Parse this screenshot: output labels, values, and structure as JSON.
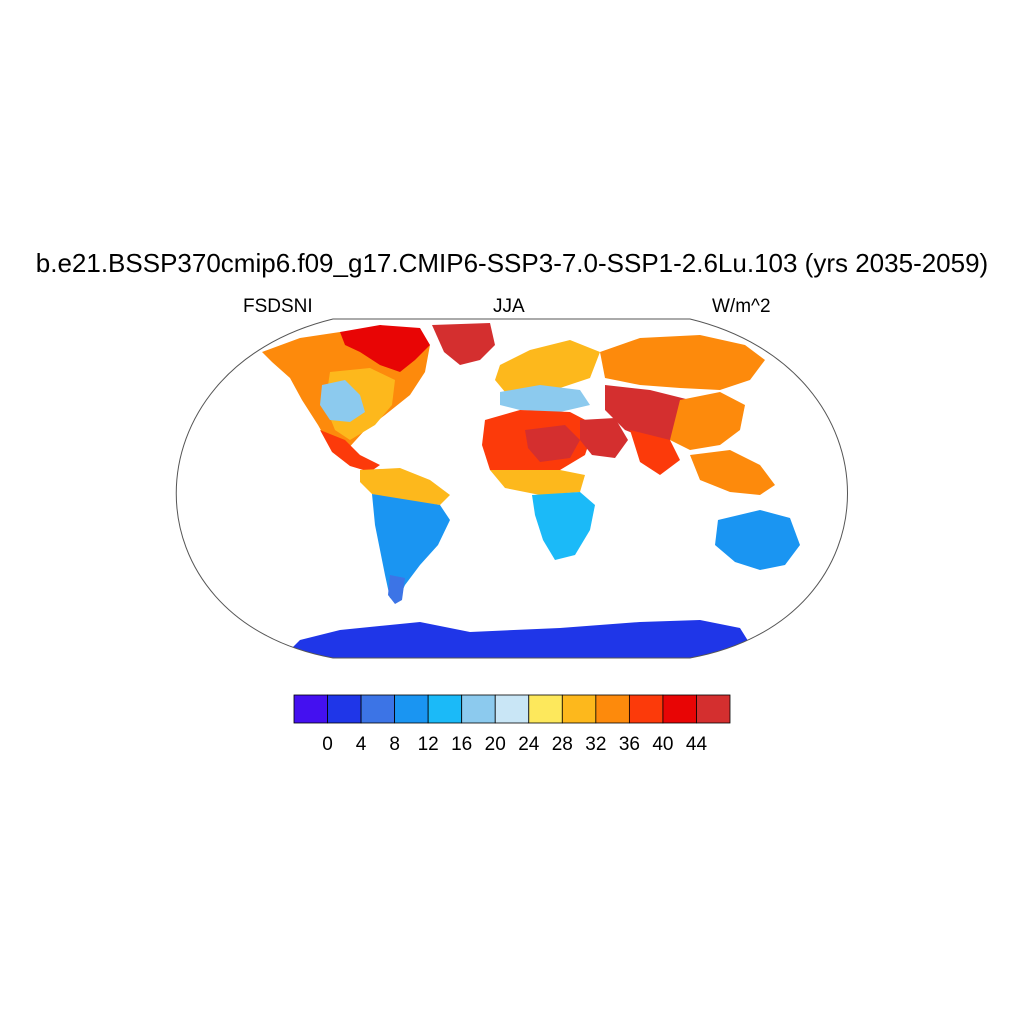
{
  "title": "b.e21.BSSP370cmip6.f09_g17.CMIP6-SSP3-7.0-SSP1-2.6Lu.103 (yrs 2035-2059)",
  "left_label": "FSDSNI",
  "center_label": "JJA",
  "right_label": "W/m^2",
  "colorbar": {
    "colors": [
      "#4410f0",
      "#1f36e8",
      "#3c74e6",
      "#1a95f2",
      "#1bbaf8",
      "#8ccaee",
      "#c9e6f6",
      "#fde85c",
      "#fdb81c",
      "#fd8a0c",
      "#fc3a0a",
      "#e80505",
      "#d42f2f"
    ],
    "tick_labels": [
      "0",
      "4",
      "8",
      "12",
      "16",
      "20",
      "24",
      "28",
      "32",
      "36",
      "40",
      "44"
    ]
  },
  "chart_data": {
    "type": "heatmap",
    "projection": "robinson",
    "variable": "FSDSNI",
    "season": "JJA",
    "units": "W/m^2",
    "levels": [
      0,
      4,
      8,
      12,
      16,
      20,
      24,
      28,
      32,
      36,
      40,
      44
    ],
    "regions": [
      {
        "name": "Greenland",
        "level_bin": ">44"
      },
      {
        "name": "Canadian Arctic",
        "level_bin": "40-44"
      },
      {
        "name": "Alaska / NW Canada",
        "level_bin": "32-36"
      },
      {
        "name": "Central North America",
        "level_bin": "24-32"
      },
      {
        "name": "US Midwest / South",
        "level_bin": "16-24"
      },
      {
        "name": "Mexico / Central America",
        "level_bin": "32-40"
      },
      {
        "name": "Northern South America",
        "level_bin": "28-36"
      },
      {
        "name": "Central South America",
        "level_bin": "12-16"
      },
      {
        "name": "Southern South America",
        "level_bin": "12-20"
      },
      {
        "name": "Europe",
        "level_bin": "24-36"
      },
      {
        "name": "Mediterranean coast",
        "level_bin": "16-24"
      },
      {
        "name": "Sahara",
        "level_bin": "36-44"
      },
      {
        "name": "Arabian Peninsula",
        "level_bin": ">44"
      },
      {
        "name": "Sahel / West Africa",
        "level_bin": "32-40"
      },
      {
        "name": "Southern Africa",
        "level_bin": "12-20"
      },
      {
        "name": "Siberia",
        "level_bin": "32-40"
      },
      {
        "name": "Central Asia / Iran",
        "level_bin": ">44"
      },
      {
        "name": "China",
        "level_bin": "28-40"
      },
      {
        "name": "Southeast Asia",
        "level_bin": "32-40"
      },
      {
        "name": "Australia",
        "level_bin": "12-20"
      },
      {
        "name": "Antarctica",
        "level_bin": "0-4"
      }
    ]
  }
}
